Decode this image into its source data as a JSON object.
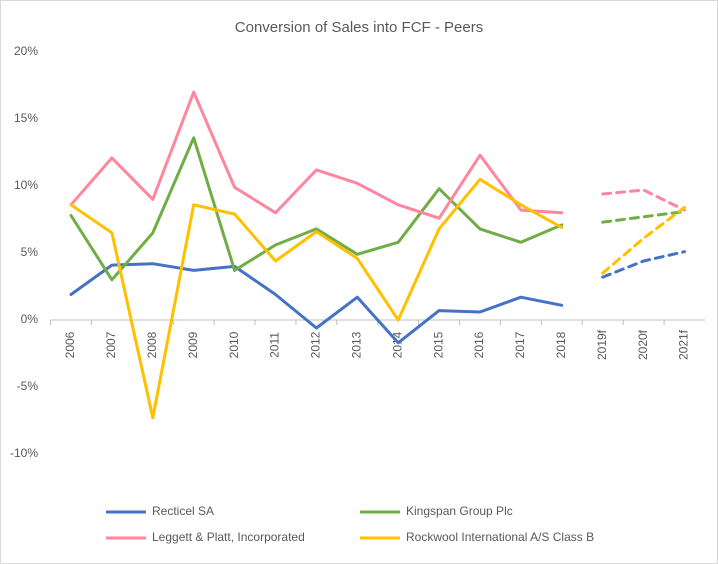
{
  "chart_data": {
    "type": "line",
    "title": "Conversion of Sales into FCF - Peers",
    "categories": [
      "2006",
      "2007",
      "2008",
      "2009",
      "2010",
      "2011",
      "2012",
      "2013",
      "2014",
      "2015",
      "2016",
      "2017",
      "2018",
      "2019f",
      "2020f",
      "2021f"
    ],
    "series": [
      {
        "name": "Recticel SA",
        "color": "#4472c4",
        "values": [
          1.9,
          4.1,
          4.2,
          3.7,
          4.0,
          1.9,
          -0.6,
          1.7,
          -1.7,
          0.7,
          0.6,
          1.7,
          1.1,
          null,
          null,
          null
        ],
        "forecast_values": [
          null,
          null,
          null,
          null,
          null,
          null,
          null,
          null,
          null,
          null,
          null,
          null,
          null,
          3.2,
          4.4,
          5.1
        ]
      },
      {
        "name": "Kingspan Group Plc",
        "color": "#70ad47",
        "values": [
          7.8,
          3.0,
          6.5,
          13.6,
          3.7,
          5.6,
          6.8,
          4.9,
          5.8,
          9.8,
          6.8,
          5.8,
          7.1,
          null,
          null,
          null
        ],
        "forecast_values": [
          null,
          null,
          null,
          null,
          null,
          null,
          null,
          null,
          null,
          null,
          null,
          null,
          null,
          7.3,
          7.7,
          8.1
        ]
      },
      {
        "name": "Leggett & Platt, Incorporated",
        "color": "#ff869e",
        "values": [
          8.6,
          12.1,
          9.0,
          17.0,
          9.9,
          8.0,
          11.2,
          10.2,
          8.6,
          7.6,
          12.3,
          8.2,
          8.0,
          null,
          null,
          null
        ],
        "forecast_values": [
          null,
          null,
          null,
          null,
          null,
          null,
          null,
          null,
          null,
          null,
          null,
          null,
          null,
          9.4,
          9.7,
          8.2
        ]
      },
      {
        "name": "Rockwool International A/S Class B",
        "color": "#ffc000",
        "values": [
          8.6,
          6.5,
          -7.3,
          8.6,
          7.9,
          4.4,
          6.6,
          4.6,
          0.0,
          6.8,
          10.5,
          8.6,
          6.9,
          null,
          null,
          null
        ],
        "forecast_values": [
          null,
          null,
          null,
          null,
          null,
          null,
          null,
          null,
          null,
          null,
          null,
          null,
          null,
          3.5,
          6.1,
          8.4
        ]
      }
    ],
    "ylim": [
      -10,
      20
    ],
    "yticks": [
      {
        "value": -10,
        "label": "-10%"
      },
      {
        "value": -5,
        "label": "-5%"
      },
      {
        "value": 0,
        "label": "0%"
      },
      {
        "value": 5,
        "label": "5%"
      },
      {
        "value": 10,
        "label": "10%"
      },
      {
        "value": 15,
        "label": "15%"
      },
      {
        "value": 20,
        "label": "20%"
      }
    ],
    "grid": false,
    "legend": "bottom"
  }
}
